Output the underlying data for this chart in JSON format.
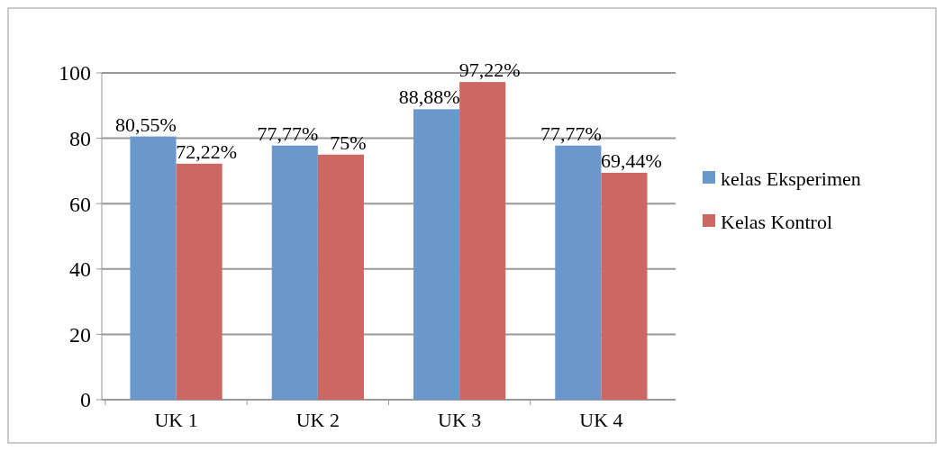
{
  "chart_data": {
    "type": "bar",
    "categories": [
      "UK 1",
      "UK 2",
      "UK 3",
      "UK 4"
    ],
    "series": [
      {
        "name": "kelas Eksperimen",
        "color": "#6a97cc",
        "values": [
          80.55,
          77.77,
          88.88,
          77.77
        ],
        "value_labels": [
          "80,55%",
          "77,77%",
          "88,88%",
          "77,77%"
        ]
      },
      {
        "name": "Kelas Kontrol",
        "color": "#cd6764",
        "values": [
          72.22,
          75,
          97.22,
          69.44
        ],
        "value_labels": [
          "72,22%",
          "75%",
          "97,22%",
          "69,44%"
        ]
      }
    ],
    "ylim": [
      0,
      100
    ],
    "yticks": [
      0,
      20,
      40,
      60,
      80,
      100
    ],
    "grid": "y",
    "legend": "right"
  }
}
